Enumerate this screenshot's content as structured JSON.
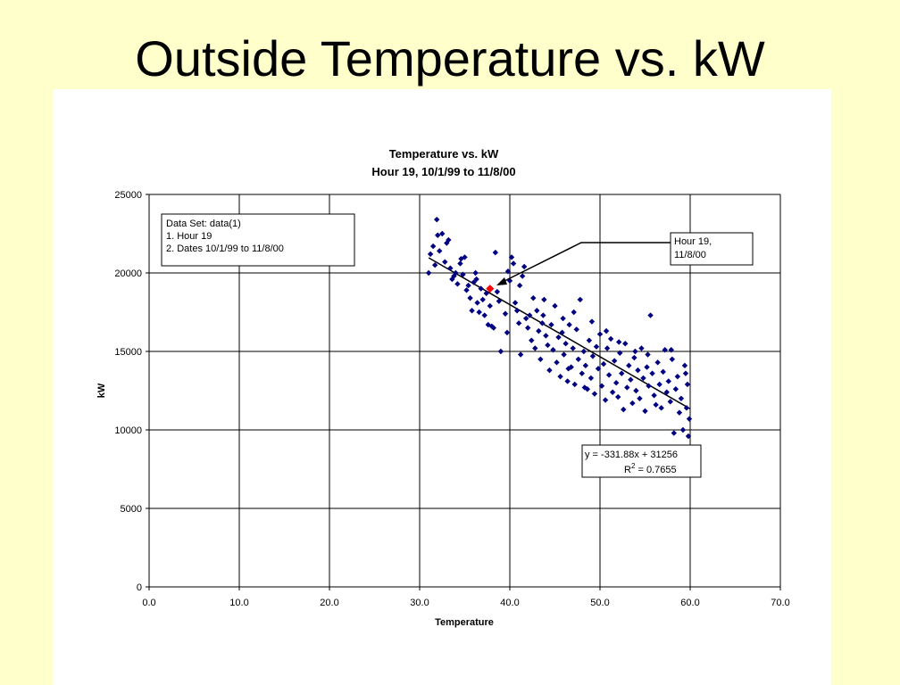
{
  "slide": {
    "title": "Outside Temperature vs. kW"
  },
  "colors": {
    "background": "#ffffcc",
    "marker": "#000080",
    "highlight": "#ff0000",
    "gridline": "#000000"
  },
  "chart_data": {
    "type": "scatter",
    "title": "Temperature vs. kW",
    "subtitle": "Hour 19, 10/1/99 to 11/8/00",
    "xlabel": "Temperature",
    "ylabel": "kW",
    "xlim": [
      0,
      70
    ],
    "ylim": [
      0,
      25000
    ],
    "x_ticks": [
      "0.0",
      "10.0",
      "20.0",
      "30.0",
      "40.0",
      "50.0",
      "60.0",
      "70.0"
    ],
    "y_ticks": [
      "0",
      "5000",
      "10000",
      "15000",
      "20000",
      "25000"
    ],
    "grid": true,
    "legend": "none",
    "info_box": {
      "line1": "Data Set: data(1)",
      "line2": "1. Hour 19",
      "line3": "2.  Dates 10/1/99 to 11/8/00"
    },
    "callout": {
      "line1": "Hour 19,",
      "line2": "11/8/00",
      "point": [
        37.8,
        19000
      ]
    },
    "trendline": {
      "slope": -331.88,
      "intercept": 31256,
      "x_range": [
        31,
        60
      ],
      "equation_label": "y = -331.88x + 31256",
      "r2_label": "R",
      "r2_sup": "2",
      "r2_value": " = 0.7655"
    },
    "series": [
      {
        "color": "#000080",
        "points": [
          [
            31.2,
            21200
          ],
          [
            31.5,
            21700
          ],
          [
            31.7,
            20500
          ],
          [
            31.9,
            23400
          ],
          [
            32.0,
            22400
          ],
          [
            32.2,
            21400
          ],
          [
            32.5,
            22500
          ],
          [
            31.0,
            20000
          ],
          [
            32.8,
            20700
          ],
          [
            33.0,
            21900
          ],
          [
            33.2,
            22100
          ],
          [
            33.4,
            20300
          ],
          [
            33.6,
            19600
          ],
          [
            33.8,
            19800
          ],
          [
            34.0,
            20000
          ],
          [
            34.2,
            19300
          ],
          [
            34.5,
            20600
          ],
          [
            34.8,
            19900
          ],
          [
            35.0,
            21000
          ],
          [
            35.2,
            18900
          ],
          [
            35.4,
            19200
          ],
          [
            35.6,
            18400
          ],
          [
            35.8,
            17600
          ],
          [
            36.0,
            19400
          ],
          [
            36.2,
            20000
          ],
          [
            36.4,
            18100
          ],
          [
            36.6,
            17500
          ],
          [
            36.8,
            19000
          ],
          [
            37.0,
            18300
          ],
          [
            37.2,
            17300
          ],
          [
            37.4,
            18700
          ],
          [
            37.6,
            16700
          ],
          [
            37.8,
            17900
          ],
          [
            38.0,
            16600
          ],
          [
            38.2,
            16500
          ],
          [
            38.4,
            21300
          ],
          [
            38.6,
            18800
          ],
          [
            38.8,
            18200
          ],
          [
            39.0,
            15000
          ],
          [
            39.2,
            19400
          ],
          [
            39.5,
            17400
          ],
          [
            39.7,
            16200
          ],
          [
            40.0,
            19500
          ],
          [
            40.2,
            21000
          ],
          [
            40.4,
            20600
          ],
          [
            40.6,
            18100
          ],
          [
            40.8,
            17600
          ],
          [
            41.0,
            16800
          ],
          [
            41.2,
            14800
          ],
          [
            41.4,
            19800
          ],
          [
            41.6,
            20400
          ],
          [
            41.8,
            17100
          ],
          [
            42.0,
            16500
          ],
          [
            42.2,
            17300
          ],
          [
            42.4,
            15700
          ],
          [
            42.6,
            18400
          ],
          [
            42.8,
            15200
          ],
          [
            43.0,
            17600
          ],
          [
            43.2,
            16300
          ],
          [
            43.4,
            14500
          ],
          [
            43.6,
            16800
          ],
          [
            43.8,
            18300
          ],
          [
            44.0,
            16000
          ],
          [
            44.2,
            15400
          ],
          [
            44.4,
            13800
          ],
          [
            44.6,
            16700
          ],
          [
            44.8,
            15100
          ],
          [
            45.0,
            17900
          ],
          [
            45.2,
            14300
          ],
          [
            45.4,
            15900
          ],
          [
            45.6,
            13400
          ],
          [
            45.8,
            16200
          ],
          [
            46.0,
            14800
          ],
          [
            46.2,
            15500
          ],
          [
            46.4,
            13100
          ],
          [
            46.6,
            16700
          ],
          [
            46.8,
            14000
          ],
          [
            47.0,
            15200
          ],
          [
            47.2,
            12900
          ],
          [
            47.4,
            16400
          ],
          [
            47.6,
            14500
          ],
          [
            47.8,
            18300
          ],
          [
            48.0,
            13600
          ],
          [
            48.2,
            15000
          ],
          [
            48.4,
            14100
          ],
          [
            48.6,
            12600
          ],
          [
            48.8,
            15700
          ],
          [
            49.0,
            13300
          ],
          [
            49.2,
            14700
          ],
          [
            49.4,
            12300
          ],
          [
            49.6,
            15300
          ],
          [
            49.8,
            13900
          ],
          [
            50.0,
            16100
          ],
          [
            50.2,
            12800
          ],
          [
            50.4,
            14200
          ],
          [
            50.6,
            11900
          ],
          [
            50.8,
            15200
          ],
          [
            51.0,
            13500
          ],
          [
            51.2,
            15800
          ],
          [
            51.4,
            12400
          ],
          [
            51.6,
            14400
          ],
          [
            51.8,
            13000
          ],
          [
            52.0,
            12100
          ],
          [
            52.2,
            14900
          ],
          [
            52.4,
            13600
          ],
          [
            52.6,
            11300
          ],
          [
            52.8,
            15500
          ],
          [
            53.0,
            12700
          ],
          [
            53.2,
            14100
          ],
          [
            53.4,
            13200
          ],
          [
            53.6,
            11700
          ],
          [
            53.8,
            14600
          ],
          [
            54.0,
            12500
          ],
          [
            54.2,
            13800
          ],
          [
            54.4,
            12000
          ],
          [
            54.6,
            15200
          ],
          [
            54.8,
            13300
          ],
          [
            55.0,
            11200
          ],
          [
            55.2,
            14000
          ],
          [
            55.4,
            12800
          ],
          [
            55.6,
            17300
          ],
          [
            55.8,
            13600
          ],
          [
            56.0,
            12200
          ],
          [
            56.2,
            11600
          ],
          [
            56.4,
            14300
          ],
          [
            56.6,
            12900
          ],
          [
            56.8,
            11400
          ],
          [
            57.0,
            13700
          ],
          [
            57.2,
            15100
          ],
          [
            57.4,
            12400
          ],
          [
            57.6,
            13100
          ],
          [
            57.8,
            11800
          ],
          [
            58.0,
            14500
          ],
          [
            58.2,
            9800
          ],
          [
            58.4,
            12600
          ],
          [
            58.6,
            13400
          ],
          [
            58.8,
            11100
          ],
          [
            59.0,
            12000
          ],
          [
            59.2,
            10000
          ],
          [
            59.4,
            14100
          ],
          [
            59.6,
            11400
          ],
          [
            59.8,
            9600
          ],
          [
            59.9,
            10700
          ],
          [
            59.7,
            12900
          ],
          [
            34.6,
            20900
          ],
          [
            36.3,
            19600
          ],
          [
            39.8,
            20100
          ],
          [
            41.1,
            19200
          ],
          [
            43.7,
            17300
          ],
          [
            45.9,
            17100
          ],
          [
            47.1,
            17500
          ],
          [
            49.1,
            16900
          ],
          [
            50.7,
            16300
          ],
          [
            52.1,
            15600
          ],
          [
            53.9,
            15000
          ],
          [
            55.3,
            14800
          ],
          [
            57.9,
            15100
          ],
          [
            59.5,
            13600
          ],
          [
            46.5,
            13900
          ],
          [
            48.3,
            12700
          ]
        ]
      }
    ],
    "highlight_point": [
      37.8,
      19000
    ]
  }
}
